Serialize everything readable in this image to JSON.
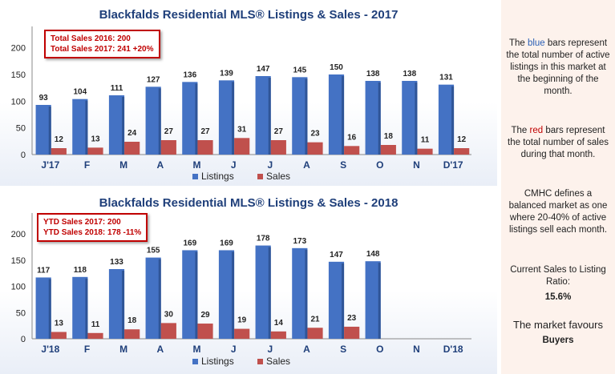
{
  "colors": {
    "listings": "#4472c4",
    "sales": "#c0504d",
    "title": "#1f3f7a",
    "callout": "#c00000"
  },
  "chart_data": [
    {
      "type": "bar",
      "title": "Blackfalds Residential MLS® Listings & Sales - 2017",
      "categories": [
        "J'17",
        "F",
        "M",
        "A",
        "M",
        "J",
        "J",
        "A",
        "S",
        "O",
        "N",
        "D'17"
      ],
      "series": [
        {
          "name": "Listings",
          "values": [
            93,
            104,
            111,
            127,
            136,
            139,
            147,
            145,
            150,
            138,
            138,
            131
          ]
        },
        {
          "name": "Sales",
          "values": [
            12,
            13,
            24,
            27,
            27,
            31,
            27,
            23,
            16,
            18,
            11,
            12
          ]
        }
      ],
      "yticks": [
        "0",
        "50",
        "100",
        "150",
        "200"
      ],
      "ylim": [
        0,
        240
      ],
      "legend_position": "bottom",
      "callout": [
        "Total Sales 2016: 200",
        "Total Sales 2017: 241  +20%"
      ]
    },
    {
      "type": "bar",
      "title": "Blackfalds Residential MLS® Listings & Sales - 2018",
      "categories": [
        "J'18",
        "F",
        "M",
        "A",
        "M",
        "J",
        "J",
        "A",
        "S",
        "O",
        "N",
        "D'18"
      ],
      "series": [
        {
          "name": "Listings",
          "values": [
            117,
            118,
            133,
            155,
            169,
            169,
            178,
            173,
            147,
            148,
            null,
            null
          ]
        },
        {
          "name": "Sales",
          "values": [
            13,
            11,
            18,
            30,
            29,
            19,
            14,
            21,
            23,
            null,
            null,
            null
          ]
        }
      ],
      "yticks": [
        "0",
        "50",
        "100",
        "150",
        "200"
      ],
      "ylim": [
        0,
        240
      ],
      "legend_position": "bottom",
      "callout": [
        "YTD Sales 2017: 200",
        "YTD Sales 2018: 178  -11%"
      ]
    }
  ],
  "sidebar": {
    "p1_pre": "The ",
    "p1_blue": "blue",
    "p1_post": " bars represent the total number of active listings in this market at the beginning of the month.",
    "p2_pre": "The ",
    "p2_red": "red",
    "p2_post": " bars represent the total number of sales during that month.",
    "p3": "CMHC defines a balanced market as one where 20-40% of active listings sell each month.",
    "p4": "Current Sales to Listing Ratio:",
    "ratio": "15.6%",
    "p5": "The market favours",
    "verdict": "Buyers"
  }
}
